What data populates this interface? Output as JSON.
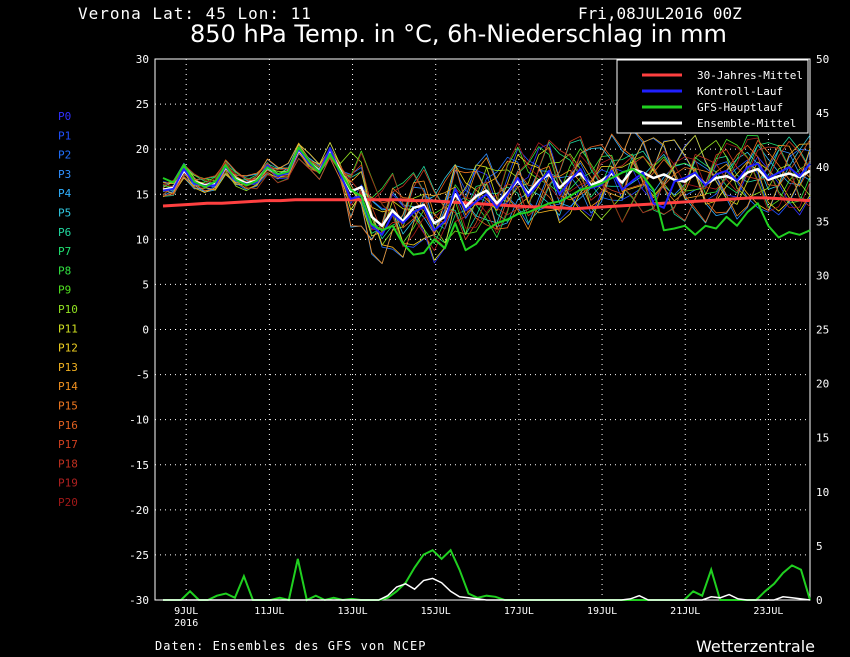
{
  "header": {
    "station": "Verona   Lat: 45 Lon: 11",
    "datetime": "Fri,08JUL2016 00Z",
    "title": "850 hPa Temp. in °C, 6h-Niederschlag in mm"
  },
  "footer": {
    "source": "Daten: Ensembles des GFS von NCEP",
    "brand": "Wetterzentrale"
  },
  "chart_data": {
    "type": "line",
    "title": "850 hPa Temp. in °C, 6h-Niederschlag in mm",
    "x_range": [
      "2016-07-08 06Z",
      "2016-07-23 18Z"
    ],
    "x_tick_labels": [
      "9JUL",
      "11JUL",
      "13JUL",
      "15JUL",
      "17JUL",
      "19JUL",
      "21JUL",
      "23JUL"
    ],
    "x_tick_sublabel": "2016",
    "y_left": {
      "label": "°C",
      "ylim": [
        -30,
        30
      ],
      "ticks": [
        30,
        25,
        20,
        15,
        10,
        5,
        0,
        -5,
        -10,
        -15,
        -20,
        -25,
        -30
      ]
    },
    "y_right": {
      "label": "mm",
      "ylim": [
        0,
        50
      ],
      "ticks": [
        50,
        45,
        40,
        35,
        30,
        25,
        20,
        15,
        10,
        5,
        0
      ]
    },
    "grid": true,
    "legend": {
      "placement": "top-right",
      "entries": [
        {
          "name": "30-Jahres-Mittel",
          "color": "#ff4040"
        },
        {
          "name": "Kontroll-Lauf",
          "color": "#2020ff"
        },
        {
          "name": "GFS-Hauptlauf",
          "color": "#20d020"
        },
        {
          "name": "Ensemble-Mittel",
          "color": "#ffffff"
        }
      ]
    },
    "members": [
      {
        "name": "P0",
        "color": "#3030ff"
      },
      {
        "name": "P1",
        "color": "#2050ff"
      },
      {
        "name": "P2",
        "color": "#2070ff"
      },
      {
        "name": "P3",
        "color": "#3090ff"
      },
      {
        "name": "P4",
        "color": "#30b0ff"
      },
      {
        "name": "P5",
        "color": "#30c8e0"
      },
      {
        "name": "P6",
        "color": "#20d8a0"
      },
      {
        "name": "P7",
        "color": "#20e070"
      },
      {
        "name": "P8",
        "color": "#30e040"
      },
      {
        "name": "P9",
        "color": "#50e020"
      },
      {
        "name": "P10",
        "color": "#90e020"
      },
      {
        "name": "P11",
        "color": "#d0e020"
      },
      {
        "name": "P12",
        "color": "#f0d020"
      },
      {
        "name": "P13",
        "color": "#f0b020"
      },
      {
        "name": "P14",
        "color": "#f09020"
      },
      {
        "name": "P15",
        "color": "#f07820"
      },
      {
        "name": "P16",
        "color": "#e06020"
      },
      {
        "name": "P17",
        "color": "#d04020"
      },
      {
        "name": "P18",
        "color": "#c03020"
      },
      {
        "name": "P19",
        "color": "#b02020"
      },
      {
        "name": "P20",
        "color": "#a01818"
      }
    ],
    "series": [
      {
        "name": "30-Jahres-Mittel",
        "unit": "°C",
        "values": [
          13.7,
          13.8,
          13.9,
          14.0,
          14.0,
          14.1,
          14.2,
          14.3,
          14.3,
          14.4,
          14.4,
          14.4,
          14.4,
          14.4,
          14.4,
          14.4,
          14.4,
          14.3,
          14.3,
          14.2,
          14.1,
          14.0,
          13.9,
          13.8,
          13.7,
          13.6,
          13.6,
          13.5,
          13.4,
          13.5,
          13.6,
          13.7,
          13.8,
          13.9,
          14.0,
          14.1,
          14.2,
          14.3,
          14.4,
          14.5,
          14.6,
          14.6,
          14.5,
          14.4,
          14.3
        ]
      },
      {
        "name": "Ensemble-Mittel",
        "unit": "°C",
        "values": [
          15.5,
          15.7,
          17.6,
          16.4,
          16.0,
          16.2,
          18.0,
          16.7,
          16.2,
          16.5,
          18.0,
          17.2,
          17.5,
          19.9,
          18.6,
          17.6,
          19.8,
          17.6,
          15.3,
          15.8,
          12.5,
          11.5,
          13.2,
          12.0,
          13.5,
          13.8,
          11.8,
          12.5,
          15.0,
          13.6,
          14.8,
          15.4,
          14.0,
          15.2,
          16.5,
          15.1,
          16.5,
          17.2,
          15.7,
          16.8,
          17.3,
          16.0,
          16.5,
          17.3,
          16.3,
          17.8,
          17.4,
          16.8,
          17.2,
          16.6,
          16.4,
          17.2,
          16.1,
          16.8,
          17.0,
          16.5,
          17.4,
          17.8,
          16.6,
          17.0,
          17.3,
          16.9,
          17.6
        ]
      },
      {
        "name": "Kontroll-Lauf",
        "unit": "°C",
        "values": [
          15.4,
          15.6,
          17.8,
          16.2,
          15.9,
          16.0,
          18.1,
          16.5,
          16.1,
          16.3,
          18.2,
          17.0,
          17.4,
          20.0,
          18.5,
          17.5,
          20.1,
          17.2,
          14.5,
          14.8,
          11.5,
          10.5,
          12.8,
          11.8,
          13.0,
          13.6,
          11.0,
          12.0,
          15.6,
          13.2,
          14.2,
          15.0,
          13.5,
          15.0,
          16.8,
          14.8,
          16.2,
          17.6,
          15.0,
          16.5,
          17.8,
          15.7,
          16.0,
          17.6,
          15.5,
          16.5,
          17.4,
          14.0,
          13.5,
          16.4,
          16.8,
          17.4,
          16.0,
          17.2,
          17.6,
          16.5,
          18.0,
          18.4,
          16.8,
          17.4,
          18.0,
          17.0,
          18.4
        ]
      },
      {
        "name": "GFS-Hauptlauf",
        "unit": "°C",
        "values": [
          16.8,
          16.3,
          18.3,
          16.4,
          15.8,
          16.4,
          18.2,
          16.6,
          16.0,
          16.5,
          18.0,
          17.2,
          17.5,
          20.2,
          18.7,
          17.4,
          19.5,
          17.5,
          15.5,
          14.8,
          11.7,
          11.0,
          11.5,
          9.5,
          8.3,
          8.5,
          10.0,
          9.0,
          11.8,
          8.8,
          9.5,
          11.0,
          11.8,
          12.2,
          12.8,
          13.0,
          13.5,
          14.0,
          14.2,
          14.8,
          15.5,
          15.8,
          16.2,
          16.8,
          17.4,
          17.8,
          17.0,
          15.5,
          11.0,
          11.2,
          11.5,
          10.5,
          11.5,
          11.2,
          12.5,
          11.5,
          13.0,
          14.0,
          11.5,
          10.2,
          10.8,
          10.5,
          11.0
        ]
      }
    ],
    "precip_mm": {
      "GFS-Hauptlauf": [
        0,
        0,
        0,
        0.8,
        0,
        0,
        0.4,
        0.6,
        0.2,
        2.2,
        0,
        0,
        0,
        0.2,
        0,
        3.8,
        0,
        0.4,
        0,
        0.2,
        0,
        0.1,
        0,
        0,
        0,
        0.2,
        0.8,
        1.6,
        3.0,
        4.2,
        4.6,
        3.8,
        4.6,
        2.8,
        0.6,
        0.2,
        0.4,
        0.3,
        0,
        0,
        0,
        0,
        0,
        0,
        0,
        0,
        0,
        0,
        0,
        0,
        0,
        0,
        0,
        0,
        0,
        0,
        0,
        0,
        0,
        0.8,
        0.4,
        2.8,
        0,
        0,
        0,
        0,
        0,
        0.8,
        1.5,
        2.5,
        3.2,
        2.8,
        0
      ],
      "Ensemble-Mittel": [
        0,
        0,
        0,
        0,
        0,
        0,
        0,
        0,
        0,
        0,
        0,
        0,
        0,
        0,
        0,
        0,
        0,
        0,
        0,
        0,
        0,
        0,
        0,
        0,
        0,
        0.4,
        1.2,
        1.5,
        1.0,
        1.8,
        2.0,
        1.6,
        0.8,
        0.3,
        0.2,
        0.1,
        0,
        0,
        0,
        0,
        0,
        0,
        0,
        0,
        0,
        0,
        0,
        0,
        0,
        0,
        0,
        0,
        0.1,
        0.4,
        0,
        0,
        0,
        0,
        0,
        0,
        0,
        0.3,
        0.2,
        0.5,
        0.1,
        0,
        0,
        0,
        0,
        0.3,
        0.2,
        0.1,
        0
      ]
    }
  }
}
